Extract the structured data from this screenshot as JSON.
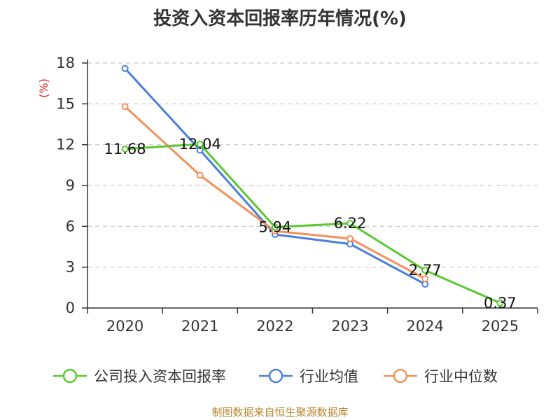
{
  "chart_data": {
    "type": "line",
    "title": "投资入资本回报率历年情况(%)",
    "ylabel": "(%)",
    "xlabel": "",
    "ylim": [
      0,
      18
    ],
    "yticks": [
      0,
      3,
      6,
      9,
      12,
      15,
      18
    ],
    "grid": true,
    "legend_position": "bottom",
    "categories": [
      "2020",
      "2021",
      "2022",
      "2023",
      "2024",
      "2025"
    ],
    "series": [
      {
        "name": "公司投入资本回报率",
        "color": "#5ac82f",
        "show_labels": true,
        "values": [
          11.68,
          12.04,
          5.94,
          6.22,
          2.77,
          0.37
        ]
      },
      {
        "name": "行业均值",
        "color": "#4a7fd9",
        "show_labels": false,
        "values": [
          17.6,
          11.6,
          5.4,
          4.7,
          1.75,
          null
        ]
      },
      {
        "name": "行业中位数",
        "color": "#f5905a",
        "show_labels": false,
        "values": [
          14.8,
          9.75,
          5.65,
          5.1,
          2.15,
          null
        ]
      }
    ]
  },
  "source": "制图数据来自恒生聚源数据库"
}
